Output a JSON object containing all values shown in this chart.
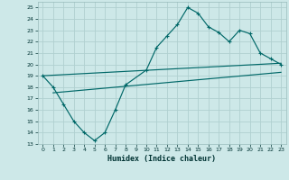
{
  "title": "",
  "xlabel": "Humidex (Indice chaleur)",
  "ylabel": "",
  "bg_color": "#cde8e8",
  "grid_color": "#b0d0d0",
  "line_color": "#006868",
  "xlim": [
    -0.5,
    23.5
  ],
  "ylim": [
    13,
    25.5
  ],
  "xticks": [
    0,
    1,
    2,
    3,
    4,
    5,
    6,
    7,
    8,
    9,
    10,
    11,
    12,
    13,
    14,
    15,
    16,
    17,
    18,
    19,
    20,
    21,
    22,
    23
  ],
  "yticks": [
    13,
    14,
    15,
    16,
    17,
    18,
    19,
    20,
    21,
    22,
    23,
    24,
    25
  ],
  "main_x": [
    0,
    1,
    2,
    3,
    4,
    5,
    6,
    7,
    8,
    10,
    11,
    12,
    13,
    14,
    15,
    16,
    17,
    18,
    19,
    20,
    21,
    22,
    23
  ],
  "main_y": [
    19,
    18,
    16.5,
    15,
    14,
    13.3,
    14,
    16,
    18.2,
    19.5,
    21.5,
    22.5,
    23.5,
    25.0,
    24.5,
    23.3,
    22.8,
    22.0,
    23.0,
    22.7,
    21.0,
    20.5,
    20.0
  ],
  "trend1_x": [
    0,
    23
  ],
  "trend1_y": [
    19.0,
    20.1
  ],
  "trend2_x": [
    1,
    23
  ],
  "trend2_y": [
    17.5,
    19.3
  ]
}
